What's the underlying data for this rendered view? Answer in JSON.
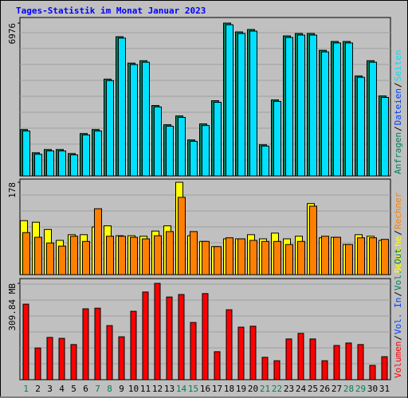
{
  "chart_data": [
    {
      "type": "bar",
      "title": "Tages-Statistik im Monat Januar 2023",
      "ylim": [
        0,
        6976
      ],
      "yticks": [
        6976
      ],
      "series": [
        {
          "name": "Anfragen",
          "color": "#00805c",
          "values": [
            2118,
            1059,
            1205,
            1205,
            1023,
            1936,
            2118,
            4419,
            6355,
            5150,
            5259,
            3214,
            2338,
            2739,
            1644,
            2374,
            3433,
            6976,
            6574,
            6684,
            1424,
            3470,
            6392,
            6501,
            6501,
            5734,
            6136,
            6136,
            4565,
            5259,
            3652
          ]
        },
        {
          "name": "Seiten",
          "color": "#00e0ff",
          "values": [
            2050,
            990,
            1140,
            1140,
            960,
            1870,
            2050,
            4350,
            6290,
            5080,
            5190,
            3150,
            2270,
            2670,
            1580,
            2300,
            3360,
            6900,
            6500,
            6610,
            1360,
            3400,
            6320,
            6430,
            6430,
            5660,
            6070,
            6070,
            4500,
            5190,
            3580
          ]
        }
      ],
      "legend": [
        {
          "text": "Anfragen",
          "color": "#00805c"
        },
        {
          "text": "/",
          "color": "#000000"
        },
        {
          "text": "Dateien",
          "color": "#0040ff"
        },
        {
          "text": "/",
          "color": "#000000"
        },
        {
          "text": "Seiten",
          "color": "#00e0ff"
        }
      ]
    },
    {
      "type": "bar",
      "ylim": [
        0,
        178
      ],
      "yticks": [
        178
      ],
      "series": [
        {
          "name": "Besuche",
          "color": "#ffff00",
          "values": [
            104,
            101,
            87,
            66,
            77,
            77,
            92,
            94,
            75,
            75,
            74,
            84,
            94,
            178,
            75,
            64,
            54,
            69,
            69,
            77,
            69,
            80,
            69,
            74,
            137,
            71,
            72,
            58,
            77,
            74,
            66
          ]
        },
        {
          "name": "Rechner",
          "color": "#ff8000",
          "values": [
            81,
            72,
            61,
            55,
            74,
            64,
            127,
            74,
            74,
            72,
            69,
            75,
            83,
            149,
            83,
            64,
            54,
            71,
            69,
            66,
            64,
            64,
            58,
            64,
            132,
            74,
            72,
            58,
            71,
            71,
            68
          ]
        }
      ],
      "legend": [
        {
          "text": "Besuche",
          "color": "#ffff00"
        },
        {
          "text": "/",
          "color": "#000000"
        },
        {
          "text": "Rechner",
          "color": "#ff8000"
        }
      ]
    },
    {
      "type": "bar",
      "ylim": [
        0,
        309.84
      ],
      "yticks": [
        {
          "value": 309.84,
          "label": "309.84 MB"
        }
      ],
      "series": [
        {
          "name": "Volumen",
          "color": "#ff0000",
          "values": [
            243,
            102,
            136,
            133,
            113,
            228,
            230,
            174,
            138,
            220,
            282,
            309.84,
            266,
            274,
            184,
            277,
            90,
            225,
            169,
            172,
            72,
            61,
            131,
            149,
            131,
            61,
            110,
            118,
            113,
            46,
            74
          ]
        }
      ],
      "legend": [
        {
          "text": "Volumen",
          "color": "#ff0000"
        },
        {
          "text": "/",
          "color": "#000000"
        },
        {
          "text": "Vol. In",
          "color": "#0040ff"
        },
        {
          "text": "/",
          "color": "#000000"
        },
        {
          "text": "Vol. Out",
          "color": "#00805c"
        }
      ],
      "categories": [
        "1",
        "2",
        "3",
        "4",
        "5",
        "6",
        "7",
        "8",
        "9",
        "10",
        "11",
        "12",
        "13",
        "14",
        "15",
        "16",
        "17",
        "18",
        "19",
        "20",
        "21",
        "22",
        "23",
        "24",
        "25",
        "26",
        "27",
        "28",
        "29",
        "30",
        "31"
      ],
      "category_colors": [
        "#00805c",
        "#000000",
        "#000000",
        "#000000",
        "#000000",
        "#000000",
        "#00805c",
        "#00805c",
        "#000000",
        "#000000",
        "#000000",
        "#000000",
        "#000000",
        "#00805c",
        "#00805c",
        "#000000",
        "#000000",
        "#000000",
        "#000000",
        "#000000",
        "#00805c",
        "#00805c",
        "#000000",
        "#000000",
        "#000000",
        "#000000",
        "#000000",
        "#00805c",
        "#00805c",
        "#000000",
        "#000000"
      ]
    }
  ]
}
